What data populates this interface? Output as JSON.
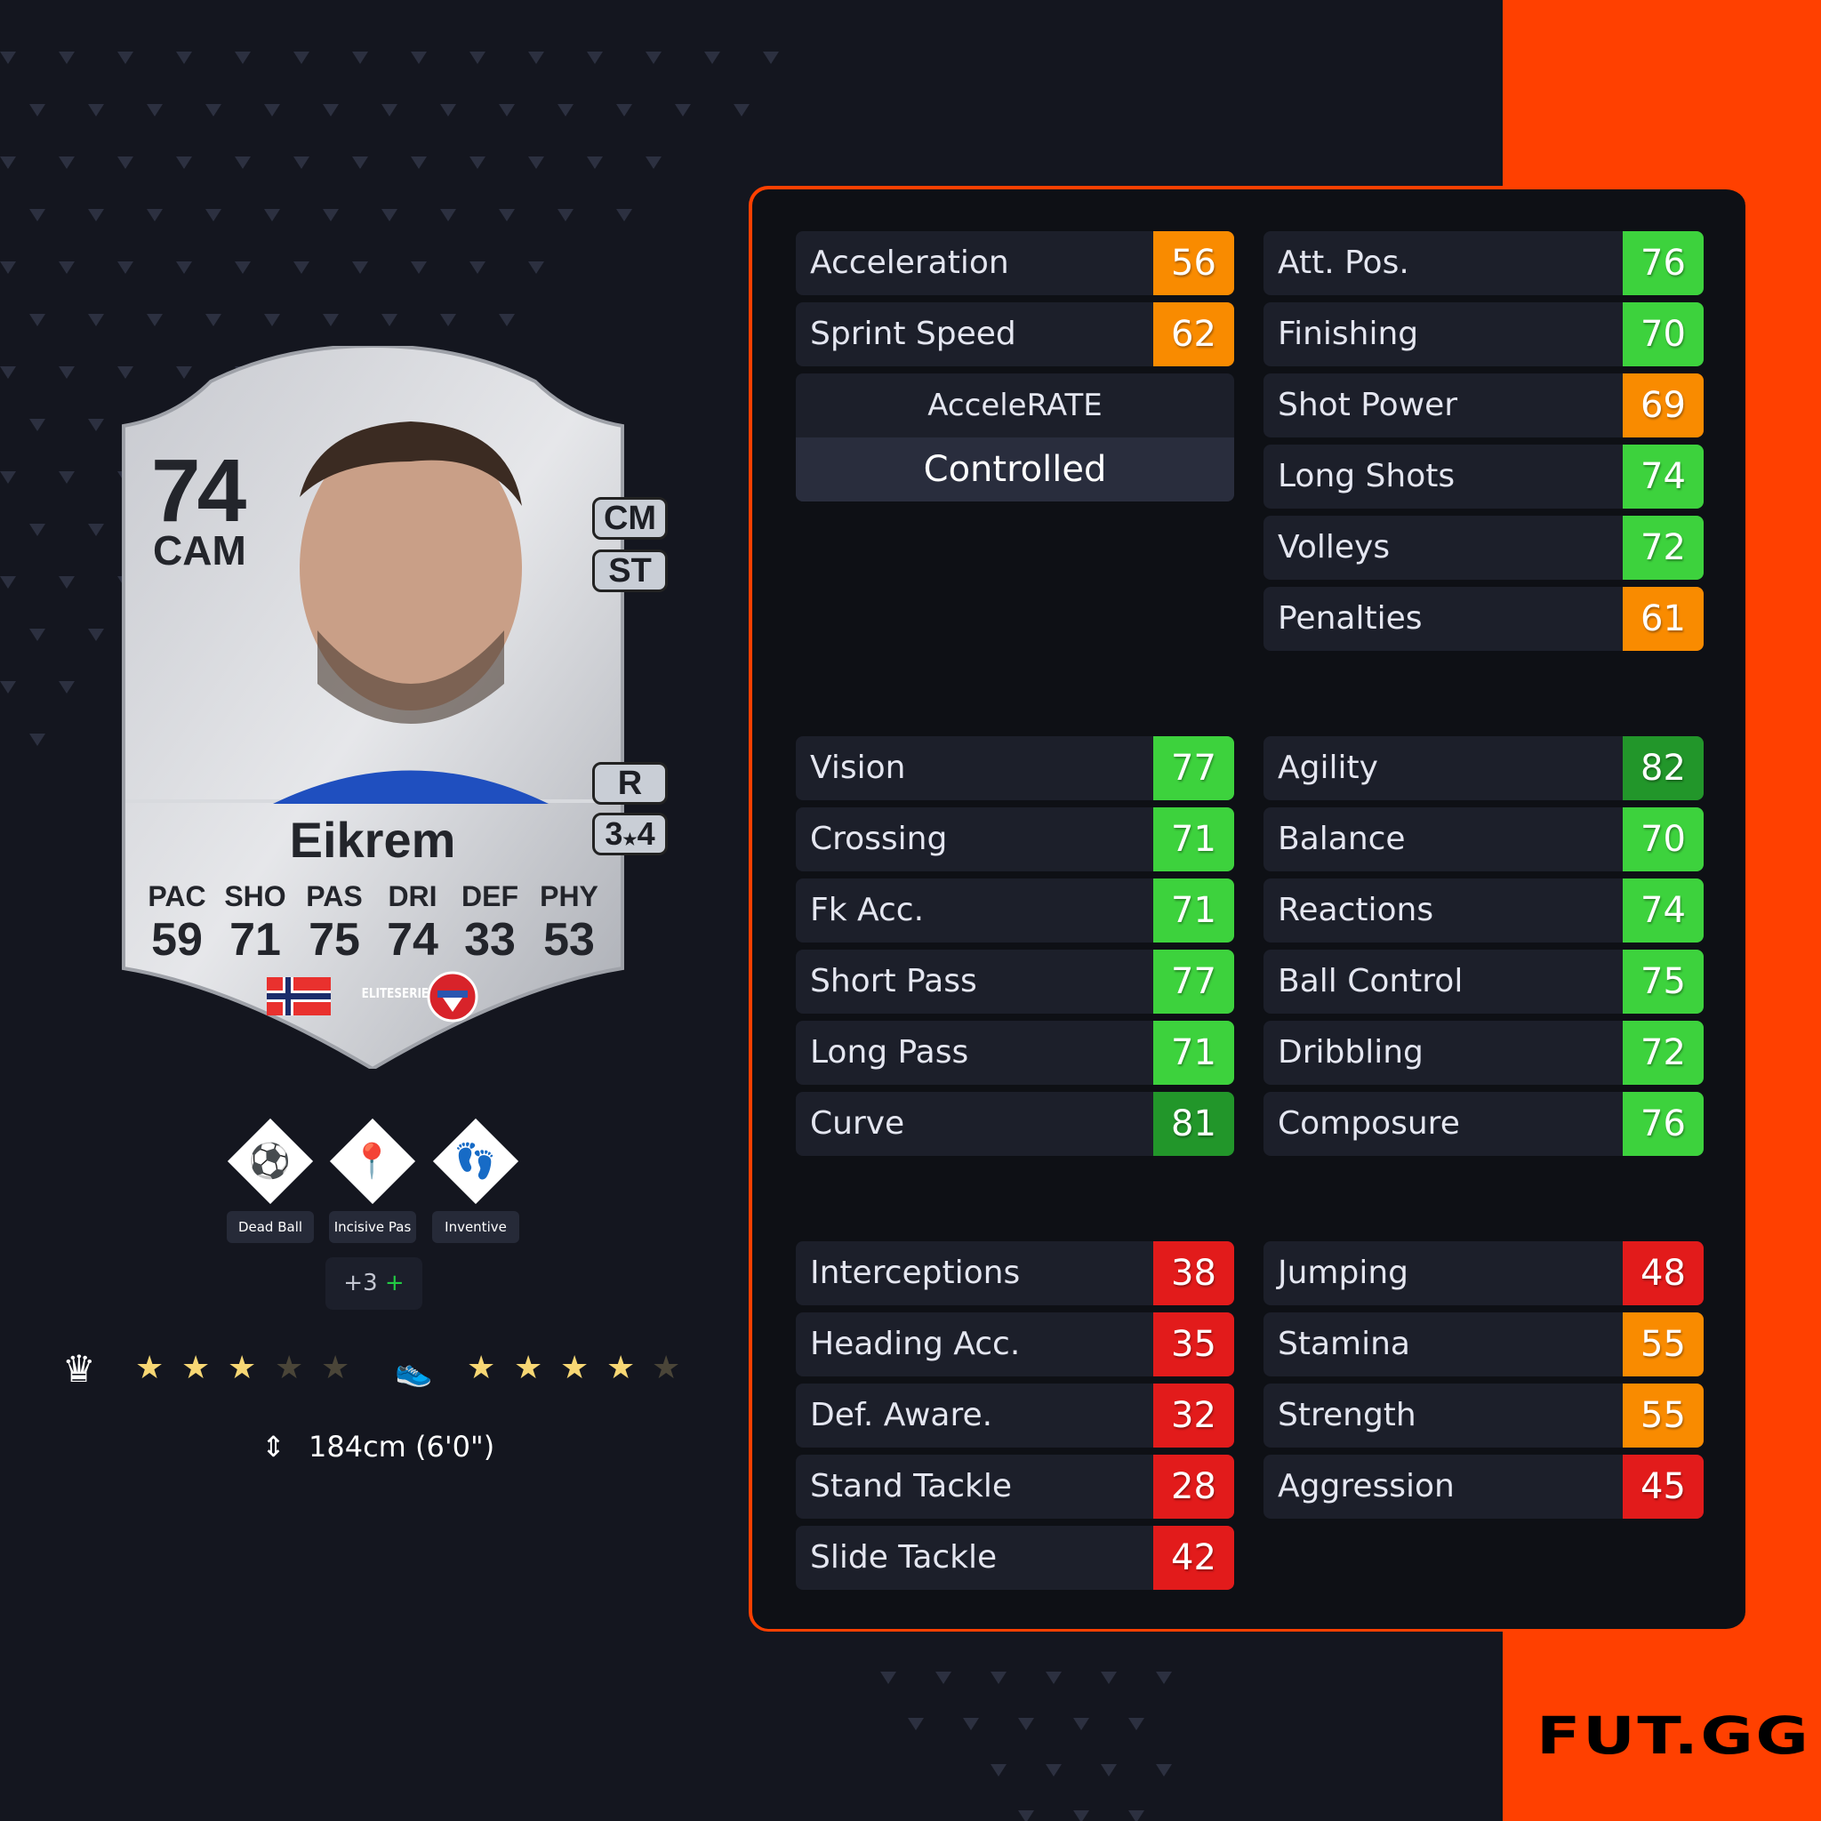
{
  "card": {
    "rating": "74",
    "position": "CAM",
    "alt_positions": [
      "CM",
      "ST"
    ],
    "foot": "R",
    "skill_weak": [
      "3",
      "4"
    ],
    "name": "Eikrem",
    "face_stats": [
      {
        "label": "PAC",
        "value": "59"
      },
      {
        "label": "SHO",
        "value": "71"
      },
      {
        "label": "PAS",
        "value": "75"
      },
      {
        "label": "DRI",
        "value": "74"
      },
      {
        "label": "DEF",
        "value": "33"
      },
      {
        "label": "PHY",
        "value": "53"
      }
    ],
    "nation": "Norway",
    "league": "ELITESERIEN",
    "club": "KFUM Kameratene"
  },
  "playstyles": [
    {
      "label": "Dead Ball",
      "icon": "dead-ball-icon"
    },
    {
      "label": "Incisive Pas",
      "icon": "incisive-pass-icon"
    },
    {
      "label": "Inventive",
      "icon": "inventive-icon"
    }
  ],
  "more_playstyles": {
    "label": "+3",
    "plus": "+"
  },
  "skill_moves": 3,
  "weak_foot": 4,
  "height": "184cm (6'0\")",
  "accelerate": {
    "label": "AcceleRATE",
    "value": "Controlled"
  },
  "colors": {
    "red": "#e21b1b",
    "orange": "#f98b00",
    "green": "#3dd23d",
    "dark_green": "#22962a",
    "brand": "#ff4000"
  },
  "stat_groups": [
    {
      "left": [
        {
          "label": "Acceleration",
          "value": 56
        },
        {
          "label": "Sprint Speed",
          "value": 62
        }
      ],
      "right": [
        {
          "label": "Att. Pos.",
          "value": 76
        },
        {
          "label": "Finishing",
          "value": 70
        },
        {
          "label": "Shot Power",
          "value": 69
        },
        {
          "label": "Long Shots",
          "value": 74
        },
        {
          "label": "Volleys",
          "value": 72
        },
        {
          "label": "Penalties",
          "value": 61
        }
      ]
    },
    {
      "left": [
        {
          "label": "Vision",
          "value": 77
        },
        {
          "label": "Crossing",
          "value": 71
        },
        {
          "label": "Fk Acc.",
          "value": 71
        },
        {
          "label": "Short Pass",
          "value": 77
        },
        {
          "label": "Long Pass",
          "value": 71
        },
        {
          "label": "Curve",
          "value": 81
        }
      ],
      "right": [
        {
          "label": "Agility",
          "value": 82
        },
        {
          "label": "Balance",
          "value": 70
        },
        {
          "label": "Reactions",
          "value": 74
        },
        {
          "label": "Ball Control",
          "value": 75
        },
        {
          "label": "Dribbling",
          "value": 72
        },
        {
          "label": "Composure",
          "value": 76
        }
      ]
    },
    {
      "left": [
        {
          "label": "Interceptions",
          "value": 38
        },
        {
          "label": "Heading Acc.",
          "value": 35
        },
        {
          "label": "Def. Aware.",
          "value": 32
        },
        {
          "label": "Stand Tackle",
          "value": 28
        },
        {
          "label": "Slide Tackle",
          "value": 42
        }
      ],
      "right": [
        {
          "label": "Jumping",
          "value": 48
        },
        {
          "label": "Stamina",
          "value": 55
        },
        {
          "label": "Strength",
          "value": 55
        },
        {
          "label": "Aggression",
          "value": 45
        }
      ]
    }
  ],
  "brand": "FUT.GG"
}
